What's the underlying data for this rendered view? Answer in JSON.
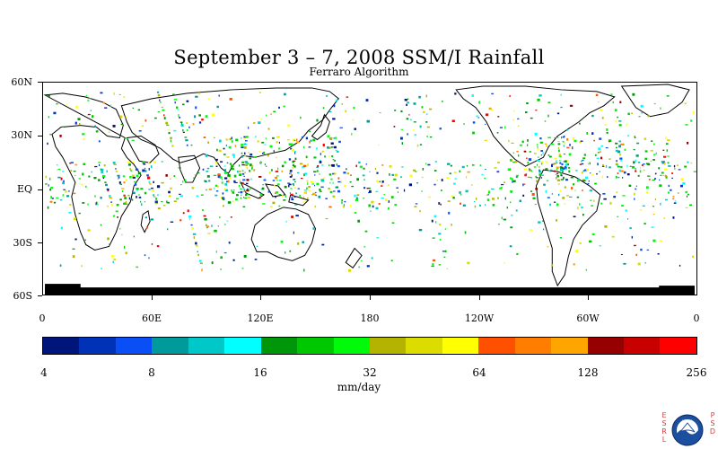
{
  "title": "September 3 – 7, 2008 SSM/I Rainfall",
  "subtitle": "Ferraro Algorithm",
  "lat_labels": [
    "60N",
    "30N",
    "EQ",
    "30S",
    "60S"
  ],
  "lon_labels": [
    "0",
    "60E",
    "120E",
    "180",
    "120W",
    "60W",
    "0"
  ],
  "colorbar": {
    "ticks": [
      "4",
      "8",
      "16",
      "32",
      "64",
      "128",
      "256"
    ],
    "unit": "mm/day",
    "colors": [
      "#00157a",
      "#0032b8",
      "#0a4ff5",
      "#009a9a",
      "#00c8c8",
      "#00ffff",
      "#00960a",
      "#00c800",
      "#00fa0a",
      "#b4b400",
      "#dcdc00",
      "#ffff00",
      "#ff5000",
      "#ff7d00",
      "#ffa500",
      "#960000",
      "#c80000",
      "#ff0000"
    ]
  },
  "credits": {
    "left": "ESRL",
    "right": "PSD",
    "logo_text": "NOAA"
  }
}
